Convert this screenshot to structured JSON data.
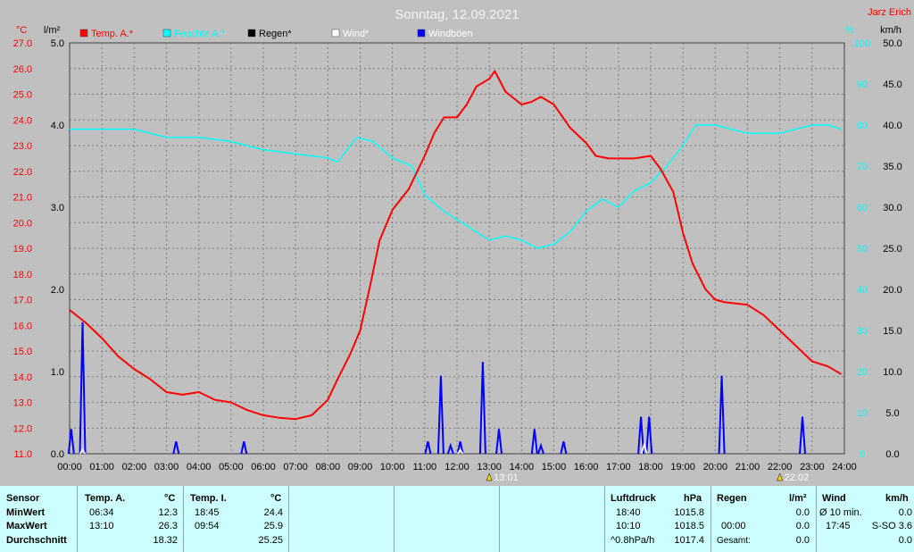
{
  "chart_data": {
    "type": "line",
    "title": "Sonntag, 12.09.2021",
    "author": "Jarz Erich",
    "x_ticks": [
      "00:00",
      "01:00",
      "02:00",
      "03:00",
      "04:00",
      "05:00",
      "06:00",
      "07:00",
      "08:00",
      "09:00",
      "10:00",
      "11:00",
      "12:00",
      "13:00",
      "14:00",
      "15:00",
      "16:00",
      "17:00",
      "18:00",
      "19:00",
      "20:00",
      "21:00",
      "22:00",
      "23:00",
      "24:00"
    ],
    "axes": {
      "temp": {
        "unit": "°C",
        "min": 11.0,
        "max": 27.0,
        "ticks": [
          "11.0",
          "12.0",
          "13.0",
          "14.0",
          "15.0",
          "16.0",
          "17.0",
          "18.0",
          "19.0",
          "20.0",
          "21.0",
          "22.0",
          "23.0",
          "24.0",
          "25.0",
          "26.0",
          "27.0"
        ]
      },
      "rain": {
        "unit": "l/m²",
        "min": 0.0,
        "max": 5.0,
        "ticks": [
          "0.0",
          "1.0",
          "2.0",
          "3.0",
          "4.0",
          "5.0"
        ]
      },
      "humidity": {
        "unit": "%",
        "min": 0,
        "max": 100,
        "ticks": [
          "0",
          "10",
          "20",
          "30",
          "40",
          "50",
          "60",
          "70",
          "80",
          "90",
          "100"
        ]
      },
      "wind": {
        "unit": "km/h",
        "min": 0.0,
        "max": 50.0,
        "ticks": [
          "0.0",
          "5.0",
          "10.0",
          "15.0",
          "20.0",
          "25.0",
          "30.0",
          "35.0",
          "40.0",
          "45.0",
          "50.0"
        ]
      }
    },
    "legend": [
      {
        "name": "Temp. A.*",
        "color": "#ff0000"
      },
      {
        "name": "Feuchte A.*",
        "color": "#00ffff"
      },
      {
        "name": "Regen*",
        "color": "#000000"
      },
      {
        "name": "Wind*",
        "color": "#ffffff"
      },
      {
        "name": "Windböen",
        "color": "#0000ff"
      }
    ],
    "series": [
      {
        "name": "Temp. A.*",
        "axis": "temp",
        "color": "#ff0000",
        "x": [
          0,
          0.5,
          1,
          1.5,
          2,
          2.5,
          3,
          3.5,
          4,
          4.5,
          5,
          5.5,
          6,
          6.5,
          7,
          7.5,
          8,
          8.3,
          8.7,
          9,
          9.3,
          9.6,
          10,
          10.5,
          11,
          11.3,
          11.6,
          12,
          12.3,
          12.6,
          13,
          13.17,
          13.5,
          14,
          14.3,
          14.6,
          15,
          15.5,
          16,
          16.3,
          16.7,
          17,
          17.5,
          18,
          18.3,
          18.7,
          19,
          19.3,
          19.7,
          20,
          20.3,
          21,
          21.5,
          22,
          22.5,
          23,
          23.5,
          23.9
        ],
        "y": [
          16.6,
          16.1,
          15.5,
          14.8,
          14.3,
          13.9,
          13.4,
          13.3,
          13.4,
          13.1,
          13.0,
          12.7,
          12.5,
          12.4,
          12.35,
          12.5,
          13.1,
          13.9,
          14.9,
          15.8,
          17.5,
          19.3,
          20.5,
          21.3,
          22.6,
          23.5,
          24.1,
          24.1,
          24.6,
          25.3,
          25.6,
          25.9,
          25.1,
          24.6,
          24.7,
          24.9,
          24.6,
          23.7,
          23.1,
          22.6,
          22.5,
          22.5,
          22.5,
          22.6,
          22.1,
          21.2,
          19.6,
          18.4,
          17.4,
          17.0,
          16.9,
          16.8,
          16.4,
          15.8,
          15.2,
          14.6,
          14.4,
          14.1
        ]
      },
      {
        "name": "Feuchte A.*",
        "axis": "humidity",
        "color": "#00ffff",
        "x": [
          0,
          1,
          2,
          3,
          4,
          5,
          6,
          7,
          8,
          8.3,
          8.9,
          9.4,
          10,
          10.6,
          11,
          11.6,
          12,
          12.4,
          13,
          13.5,
          14,
          14.5,
          15,
          15.5,
          16,
          16.5,
          17,
          17.5,
          18,
          18.5,
          19,
          19.4,
          20,
          20.5,
          21,
          21.5,
          22,
          22.5,
          23,
          23.5,
          23.9
        ],
        "y": [
          79,
          79,
          79,
          77,
          77,
          76,
          74,
          73,
          72,
          71,
          77,
          76,
          72,
          70,
          63,
          59,
          57,
          55,
          52,
          53,
          52,
          50,
          51,
          54,
          59,
          62,
          60,
          64,
          66,
          70,
          75,
          80,
          80,
          79,
          78,
          78,
          78,
          79,
          80,
          80,
          79
        ]
      },
      {
        "name": "Windböen",
        "axis": "wind",
        "color": "#0000ff",
        "spikes": [
          [
            0.05,
            3
          ],
          [
            0.4,
            16
          ],
          [
            3.3,
            1.5
          ],
          [
            5.4,
            1.5
          ],
          [
            11.1,
            1.5
          ],
          [
            11.5,
            9.5
          ],
          [
            11.8,
            1
          ],
          [
            12.1,
            1.5
          ],
          [
            12.8,
            11.2
          ],
          [
            13.3,
            3
          ],
          [
            14.4,
            3
          ],
          [
            14.6,
            1
          ],
          [
            15.3,
            1.5
          ],
          [
            17.7,
            4.5
          ],
          [
            17.95,
            4.5
          ],
          [
            20.2,
            9.5
          ],
          [
            22.7,
            4.5
          ]
        ]
      },
      {
        "name": "Wind*",
        "axis": "wind",
        "color": "#ffffff",
        "spikes": [
          [
            0.4,
            0.5
          ],
          [
            12.1,
            0.5
          ],
          [
            17.8,
            1.2
          ]
        ]
      }
    ],
    "markers": [
      {
        "label": "13:01",
        "x": 13.0
      },
      {
        "label": "22:02",
        "x": 22.0
      }
    ],
    "grid": true
  },
  "stats": {
    "sensor_header": "Sensor",
    "rows": [
      "MinWert",
      "MaxWert",
      "Durchschnitt"
    ],
    "temp_a": {
      "header": "Temp. A.",
      "unit": "°C",
      "min_time": "06:34",
      "min": "12.3",
      "max_time": "13:10",
      "max": "26.3",
      "avg": "18.32"
    },
    "temp_i": {
      "header": "Temp. I.",
      "unit": "°C",
      "min_time": "18:45",
      "min": "24.4",
      "max_time": "09:54",
      "max": "25.9",
      "avg": "25.25"
    },
    "pressure": {
      "header": "Luftdruck",
      "unit": "hPa",
      "min_time": "18:40",
      "min": "1015.8",
      "max_time": "10:10",
      "max": "1018.5",
      "trend_label": "^0.8hPa/h",
      "avg": "1017.4"
    },
    "rain": {
      "header": "Regen",
      "unit": "l/m²",
      "r1_label": "",
      "r1": "0.0",
      "r2_label": "00:00",
      "r2": "0.0",
      "r3_label": "Gesamt:",
      "r3": "0.0"
    },
    "wind": {
      "header": "Wind",
      "unit": "km/h",
      "r1_label": "Ø 10 min.",
      "r1": "0.0",
      "r2_time": "17:45",
      "r2_dir": "S-SO 3.6",
      "r3": "0.0"
    }
  }
}
